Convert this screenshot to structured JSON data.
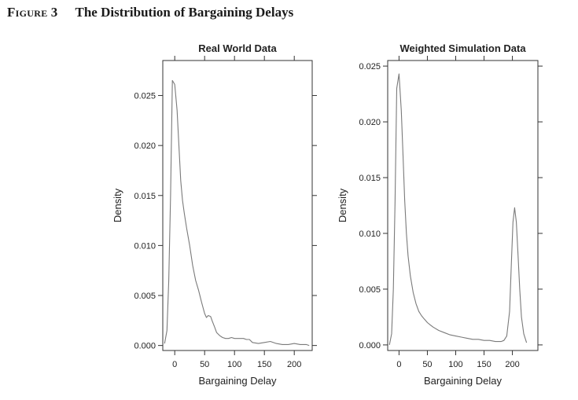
{
  "figure": {
    "label_word": "Figure",
    "label_number": "3",
    "title": "The Distribution of Bargaining Delays"
  },
  "chart_data": [
    {
      "type": "line",
      "title": "Real World Data",
      "xlabel": "Bargaining Delay",
      "ylabel": "Density",
      "xlim": [
        -20,
        230
      ],
      "ylim": [
        -0.0005,
        0.0285
      ],
      "xticks": [
        0,
        50,
        100,
        150,
        200
      ],
      "xtick_labels": [
        "0",
        "50",
        "100",
        "150",
        "200"
      ],
      "yticks": [
        0.0,
        0.005,
        0.01,
        0.015,
        0.02,
        0.025
      ],
      "ytick_labels": [
        "0.000",
        "0.005",
        "0.010",
        "0.015",
        "0.020",
        "0.025"
      ],
      "top_ticks": [
        0,
        50,
        100,
        150,
        200
      ],
      "line_color": "#7a7a7a",
      "x": [
        -17,
        -13,
        -10,
        -7,
        -4,
        0,
        4,
        7,
        10,
        13,
        16,
        20,
        25,
        30,
        35,
        40,
        45,
        50,
        53,
        56,
        60,
        63,
        67,
        70,
        75,
        80,
        85,
        90,
        95,
        100,
        105,
        110,
        115,
        120,
        125,
        130,
        140,
        150,
        160,
        170,
        180,
        190,
        200,
        210,
        220,
        225
      ],
      "y": [
        0.0002,
        0.0015,
        0.0065,
        0.015,
        0.0265,
        0.0261,
        0.0235,
        0.02,
        0.0165,
        0.0145,
        0.0132,
        0.0117,
        0.01,
        0.008,
        0.0065,
        0.0055,
        0.0043,
        0.0032,
        0.0028,
        0.003,
        0.0029,
        0.0024,
        0.0018,
        0.0013,
        0.001,
        0.0008,
        0.0007,
        0.0007,
        0.0008,
        0.0007,
        0.0007,
        0.0007,
        0.0007,
        0.0006,
        0.0006,
        0.0003,
        0.0002,
        0.0003,
        0.0004,
        0.0002,
        0.0001,
        0.0001,
        0.0002,
        0.0001,
        0.0001,
        0.0
      ]
    },
    {
      "type": "line",
      "title": "Weighted Simulation Data",
      "xlabel": "Bargaining Delay",
      "ylabel": "Density",
      "xlim": [
        -20,
        245
      ],
      "ylim": [
        -0.0005,
        0.0255
      ],
      "xticks": [
        0,
        50,
        100,
        150,
        200
      ],
      "xtick_labels": [
        "0",
        "50",
        "100",
        "150",
        "200"
      ],
      "yticks": [
        0.0,
        0.005,
        0.01,
        0.015,
        0.02,
        0.025
      ],
      "ytick_labels": [
        "0.000",
        "0.005",
        "0.010",
        "0.015",
        "0.020",
        "0.025"
      ],
      "top_ticks": [
        0,
        50,
        100,
        150,
        200
      ],
      "line_color": "#7a7a7a",
      "x": [
        -17,
        -13,
        -10,
        -7,
        -4,
        0,
        4,
        7,
        10,
        13,
        16,
        20,
        25,
        30,
        35,
        40,
        45,
        50,
        55,
        60,
        70,
        80,
        90,
        100,
        110,
        120,
        130,
        140,
        150,
        160,
        170,
        180,
        185,
        190,
        195,
        198,
        201,
        204,
        207,
        210,
        213,
        216,
        220,
        225
      ],
      "y": [
        0.0,
        0.001,
        0.005,
        0.013,
        0.023,
        0.0243,
        0.021,
        0.017,
        0.013,
        0.01,
        0.008,
        0.0062,
        0.0047,
        0.0037,
        0.003,
        0.0026,
        0.0023,
        0.002,
        0.0018,
        0.0016,
        0.0013,
        0.0011,
        0.0009,
        0.0008,
        0.0007,
        0.0006,
        0.0005,
        0.0005,
        0.0004,
        0.0004,
        0.0003,
        0.0003,
        0.0004,
        0.0008,
        0.003,
        0.007,
        0.011,
        0.0123,
        0.011,
        0.008,
        0.005,
        0.0025,
        0.001,
        0.0002
      ]
    }
  ]
}
